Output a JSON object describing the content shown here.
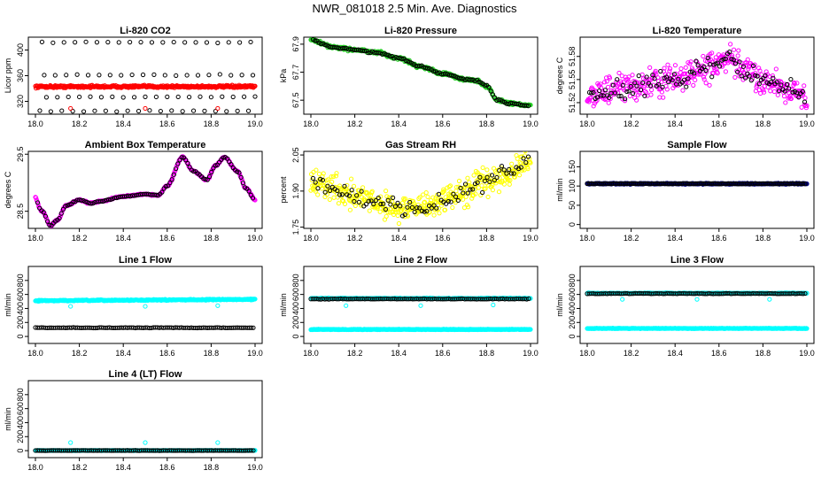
{
  "title": "NWR_081018  2.5 Min. Ave. Diagnostics",
  "colors": {
    "black": "#000000",
    "red": "#ff0000",
    "green": "#22cc22",
    "magenta": "#ff00ff",
    "yellow": "#ffff00",
    "navy": "#000080",
    "cyan": "#00ffff"
  },
  "chart_data": [
    {
      "type": "scatter",
      "title": "Li-820 CO2",
      "ylabel": "Licor ppm",
      "xlim": [
        18.0,
        19.0
      ],
      "xticks": [
        "18.0",
        "18.2",
        "18.4",
        "18.6",
        "18.8",
        "19.0"
      ],
      "ylim": [
        300,
        420
      ],
      "yticks": [
        {
          "label": "320",
          "value": 320
        },
        {
          "label": "360",
          "value": 360
        },
        {
          "label": "400",
          "value": 400
        }
      ],
      "series": [
        {
          "name": "sample",
          "color": "red",
          "style": "band",
          "n": 400,
          "base": 343,
          "amp": 2,
          "trend": 0
        },
        {
          "name": "reference-high",
          "color": "black",
          "style": "scatter",
          "n": 20,
          "base": 412,
          "amp": 1,
          "xstart": 18.03,
          "step": 0.05
        },
        {
          "name": "reference-mid",
          "color": "black",
          "style": "scatter",
          "n": 20,
          "base": 361,
          "amp": 1,
          "xstart": 18.04,
          "step": 0.05
        },
        {
          "name": "reference-dip",
          "color": "black",
          "style": "scatter",
          "n": 20,
          "base": 327,
          "amp": 1,
          "xstart": 18.05,
          "step": 0.05
        },
        {
          "name": "reference-low",
          "color": "black",
          "style": "scatter",
          "n": 20,
          "base": 305,
          "amp": 1,
          "xstart": 18.02,
          "step": 0.05
        },
        {
          "name": "spikes",
          "color": "red",
          "style": "points",
          "x": [
            18.16,
            18.5,
            18.83
          ],
          "y": [
            309,
            309,
            309
          ]
        }
      ]
    },
    {
      "type": "scatter",
      "title": "Li-820 Pressure",
      "ylabel": "kPa",
      "xlim": [
        18.0,
        19.0
      ],
      "xticks": [
        "18.0",
        "18.2",
        "18.4",
        "18.6",
        "18.8",
        "19.0"
      ],
      "ylim": [
        67.4,
        67.95
      ],
      "yticks": [
        {
          "label": "67.5",
          "value": 67.5
        },
        {
          "label": "67.7",
          "value": 67.7
        },
        {
          "label": "67.9",
          "value": 67.9
        }
      ],
      "series": [
        {
          "name": "pressure",
          "color": "green",
          "style": "curve",
          "n": 380,
          "amp": 0.012,
          "knots": [
            [
              18.0,
              67.93
            ],
            [
              18.1,
              67.88
            ],
            [
              18.2,
              67.86
            ],
            [
              18.3,
              67.84
            ],
            [
              18.4,
              67.8
            ],
            [
              18.5,
              67.74
            ],
            [
              18.6,
              67.69
            ],
            [
              18.7,
              67.65
            ],
            [
              18.75,
              67.64
            ],
            [
              18.8,
              67.6
            ],
            [
              18.85,
              67.5
            ],
            [
              18.9,
              67.48
            ],
            [
              19.0,
              67.46
            ]
          ]
        },
        {
          "name": "pressure-avg",
          "color": "black",
          "style": "curve-scatter",
          "n": 110,
          "amp": 0.008,
          "ref": 0
        }
      ]
    },
    {
      "type": "scatter",
      "title": "Li-820 Temperature",
      "ylabel": "degrees C",
      "xlim": [
        18.0,
        19.0
      ],
      "xticks": [
        "18.0",
        "18.2",
        "18.4",
        "18.6",
        "18.8",
        "19.0"
      ],
      "ylim": [
        51.505,
        51.605
      ],
      "yticks": [
        {
          "label": "51.52",
          "value": 51.52
        },
        {
          "label": "51.55",
          "value": 51.55
        },
        {
          "label": "51.58",
          "value": 51.58
        }
      ],
      "series": [
        {
          "name": "temperature",
          "color": "magenta",
          "style": "curve",
          "n": 380,
          "amp": 0.02,
          "knots": [
            [
              18.0,
              51.53
            ],
            [
              18.1,
              51.535
            ],
            [
              18.2,
              51.54
            ],
            [
              18.3,
              51.545
            ],
            [
              18.4,
              51.55
            ],
            [
              18.5,
              51.56
            ],
            [
              18.6,
              51.57
            ],
            [
              18.65,
              51.575
            ],
            [
              18.7,
              51.565
            ],
            [
              18.8,
              51.55
            ],
            [
              18.9,
              51.54
            ],
            [
              19.0,
              51.525
            ]
          ]
        },
        {
          "name": "temperature-avg",
          "color": "black",
          "style": "curve-scatter",
          "n": 110,
          "amp": 0.014,
          "ref": 0
        }
      ]
    },
    {
      "type": "scatter",
      "title": "Ambient Box Temperature",
      "ylabel": "degrees C",
      "xlim": [
        18.0,
        19.0
      ],
      "xticks": [
        "18.0",
        "18.2",
        "18.4",
        "18.6",
        "18.8",
        "19.0"
      ],
      "ylim": [
        28.2,
        29.55
      ],
      "yticks": [
        {
          "label": "28.5",
          "value": 28.5
        },
        {
          "label": "29.5",
          "value": 29.5
        }
      ],
      "series": [
        {
          "name": "ambient",
          "color": "magenta",
          "style": "curve",
          "n": 400,
          "amp": 0.015,
          "knots": [
            [
              17.99,
              28.8
            ],
            [
              18.03,
              28.5
            ],
            [
              18.07,
              28.25
            ],
            [
              18.1,
              28.35
            ],
            [
              18.14,
              28.6
            ],
            [
              18.2,
              28.7
            ],
            [
              18.25,
              28.64
            ],
            [
              18.3,
              28.68
            ],
            [
              18.4,
              28.76
            ],
            [
              18.5,
              28.8
            ],
            [
              18.56,
              28.78
            ],
            [
              18.6,
              28.95
            ],
            [
              18.67,
              29.45
            ],
            [
              18.72,
              29.2
            ],
            [
              18.78,
              29.05
            ],
            [
              18.82,
              29.3
            ],
            [
              18.86,
              29.45
            ],
            [
              18.92,
              29.2
            ],
            [
              18.96,
              28.9
            ],
            [
              19.0,
              28.7
            ]
          ]
        },
        {
          "name": "ambient-avg",
          "color": "black",
          "style": "curve-scatter",
          "n": 110,
          "amp": 0.01,
          "ref": 0
        }
      ]
    },
    {
      "type": "scatter",
      "title": "Gas Stream RH",
      "ylabel": "percent",
      "xlim": [
        18.0,
        19.0
      ],
      "xticks": [
        "18.0",
        "18.2",
        "18.4",
        "18.6",
        "18.8",
        "19.0"
      ],
      "ylim": [
        1.745,
        2.065
      ],
      "yticks": [
        {
          "label": "1.75",
          "value": 1.75
        },
        {
          "label": "1.90",
          "value": 1.9
        },
        {
          "label": "2.05",
          "value": 2.05
        }
      ],
      "series": [
        {
          "name": "rh",
          "color": "yellow",
          "style": "curve",
          "n": 420,
          "amp": 0.06,
          "knots": [
            [
              18.0,
              1.93
            ],
            [
              18.1,
              1.92
            ],
            [
              18.2,
              1.88
            ],
            [
              18.3,
              1.85
            ],
            [
              18.4,
              1.83
            ],
            [
              18.5,
              1.83
            ],
            [
              18.6,
              1.86
            ],
            [
              18.7,
              1.9
            ],
            [
              18.8,
              1.94
            ],
            [
              18.9,
              1.98
            ],
            [
              19.0,
              2.02
            ]
          ]
        },
        {
          "name": "rh-avg",
          "color": "black",
          "style": "curve-scatter",
          "n": 90,
          "amp": 0.04,
          "ref": 0
        }
      ]
    },
    {
      "type": "scatter",
      "title": "Sample Flow",
      "ylabel": "ml/min",
      "xlim": [
        18.0,
        19.0
      ],
      "xticks": [
        "18.0",
        "18.2",
        "18.4",
        "18.6",
        "18.8",
        "19.0"
      ],
      "ylim": [
        -10,
        190
      ],
      "yticks": [
        {
          "label": "0",
          "value": 0
        },
        {
          "label": "50",
          "value": 50
        },
        {
          "label": "100",
          "value": 100
        },
        {
          "label": "150",
          "value": 150
        }
      ],
      "series": [
        {
          "name": "sample-flow",
          "color": "navy",
          "style": "band",
          "n": 400,
          "base": 106,
          "amp": 1.5,
          "trend": 0
        },
        {
          "name": "sample-flow-avg",
          "color": "black",
          "style": "scatter",
          "n": 110,
          "base": 106,
          "amp": 1,
          "xstart": 18.0,
          "step": 0.0091
        }
      ]
    },
    {
      "type": "scatter",
      "title": "Line 1 Flow",
      "ylabel": "ml/min",
      "xlim": [
        18.0,
        19.0
      ],
      "xticks": [
        "18.0",
        "18.2",
        "18.4",
        "18.6",
        "18.8",
        "19.0"
      ],
      "ylim": [
        -100,
        1000
      ],
      "yticks": [
        {
          "label": "0",
          "value": 0
        },
        {
          "label": "200",
          "value": 200
        },
        {
          "label": "400",
          "value": 400
        },
        {
          "label": "600",
          "value": 600
        },
        {
          "label": "800",
          "value": 800
        }
      ],
      "series": [
        {
          "name": "line1-cyan",
          "color": "cyan",
          "style": "band",
          "n": 380,
          "base": 510,
          "amp": 8,
          "trend": 20
        },
        {
          "name": "line1-avg",
          "color": "black",
          "style": "scatter",
          "n": 110,
          "base": 125,
          "amp": 4,
          "xstart": 18.0,
          "step": 0.0091
        },
        {
          "name": "line1-spikes",
          "color": "cyan",
          "style": "points",
          "x": [
            18.16,
            18.5,
            18.83
          ],
          "y": [
            430,
            430,
            440
          ]
        }
      ]
    },
    {
      "type": "scatter",
      "title": "Line 2 Flow",
      "ylabel": "ml/min",
      "xlim": [
        18.0,
        19.0
      ],
      "xticks": [
        "18.0",
        "18.2",
        "18.4",
        "18.6",
        "18.8",
        "19.0"
      ],
      "ylim": [
        -100,
        1000
      ],
      "yticks": [
        {
          "label": "0",
          "value": 0
        },
        {
          "label": "200",
          "value": 200
        },
        {
          "label": "400",
          "value": 400
        },
        {
          "label": "600",
          "value": 600
        },
        {
          "label": "800",
          "value": 800
        }
      ],
      "series": [
        {
          "name": "line2-cyan",
          "color": "cyan",
          "style": "band",
          "n": 380,
          "base": 100,
          "amp": 5,
          "trend": 0
        },
        {
          "name": "line2-cyan-high",
          "color": "cyan",
          "style": "band",
          "n": 200,
          "base": 545,
          "amp": 6,
          "trend": 0
        },
        {
          "name": "line2-avg",
          "color": "black",
          "style": "scatter",
          "n": 110,
          "base": 535,
          "amp": 4,
          "xstart": 18.0,
          "step": 0.0091
        },
        {
          "name": "line2-spikes",
          "color": "cyan",
          "style": "points",
          "x": [
            18.16,
            18.5,
            18.83
          ],
          "y": [
            440,
            440,
            450
          ]
        }
      ]
    },
    {
      "type": "scatter",
      "title": "Line 3 Flow",
      "ylabel": "ml/min",
      "xlim": [
        18.0,
        19.0
      ],
      "xticks": [
        "18.0",
        "18.2",
        "18.4",
        "18.6",
        "18.8",
        "19.0"
      ],
      "ylim": [
        -100,
        1000
      ],
      "yticks": [
        {
          "label": "0",
          "value": 0
        },
        {
          "label": "200",
          "value": 200
        },
        {
          "label": "400",
          "value": 400
        },
        {
          "label": "600",
          "value": 600
        },
        {
          "label": "800",
          "value": 800
        }
      ],
      "series": [
        {
          "name": "line3-cyan",
          "color": "cyan",
          "style": "band",
          "n": 380,
          "base": 115,
          "amp": 4,
          "trend": 0
        },
        {
          "name": "line3-cyan-high",
          "color": "cyan",
          "style": "band",
          "n": 200,
          "base": 618,
          "amp": 5,
          "trend": 0
        },
        {
          "name": "line3-avg",
          "color": "black",
          "style": "scatter",
          "n": 110,
          "base": 612,
          "amp": 4,
          "xstart": 18.0,
          "step": 0.0091
        },
        {
          "name": "line3-spikes",
          "color": "cyan",
          "style": "points",
          "x": [
            18.16,
            18.5,
            18.83
          ],
          "y": [
            530,
            530,
            530
          ]
        }
      ]
    },
    {
      "type": "scatter",
      "title": "Line 4 (LT) Flow",
      "ylabel": "ml/min",
      "xlim": [
        18.0,
        19.0
      ],
      "xticks": [
        "18.0",
        "18.2",
        "18.4",
        "18.6",
        "18.8",
        "19.0"
      ],
      "ylim": [
        -100,
        1000
      ],
      "yticks": [
        {
          "label": "0",
          "value": 0
        },
        {
          "label": "200",
          "value": 200
        },
        {
          "label": "400",
          "value": 400
        },
        {
          "label": "600",
          "value": 600
        },
        {
          "label": "800",
          "value": 800
        }
      ],
      "series": [
        {
          "name": "line4-cyan",
          "color": "cyan",
          "style": "band",
          "n": 380,
          "base": 2,
          "amp": 2,
          "trend": 0
        },
        {
          "name": "line4-avg",
          "color": "black",
          "style": "scatter",
          "n": 110,
          "base": 2,
          "amp": 2,
          "xstart": 18.0,
          "step": 0.0091
        },
        {
          "name": "line4-spikes",
          "color": "cyan",
          "style": "points",
          "x": [
            18.16,
            18.5,
            18.83
          ],
          "y": [
            115,
            115,
            115
          ]
        }
      ]
    }
  ]
}
